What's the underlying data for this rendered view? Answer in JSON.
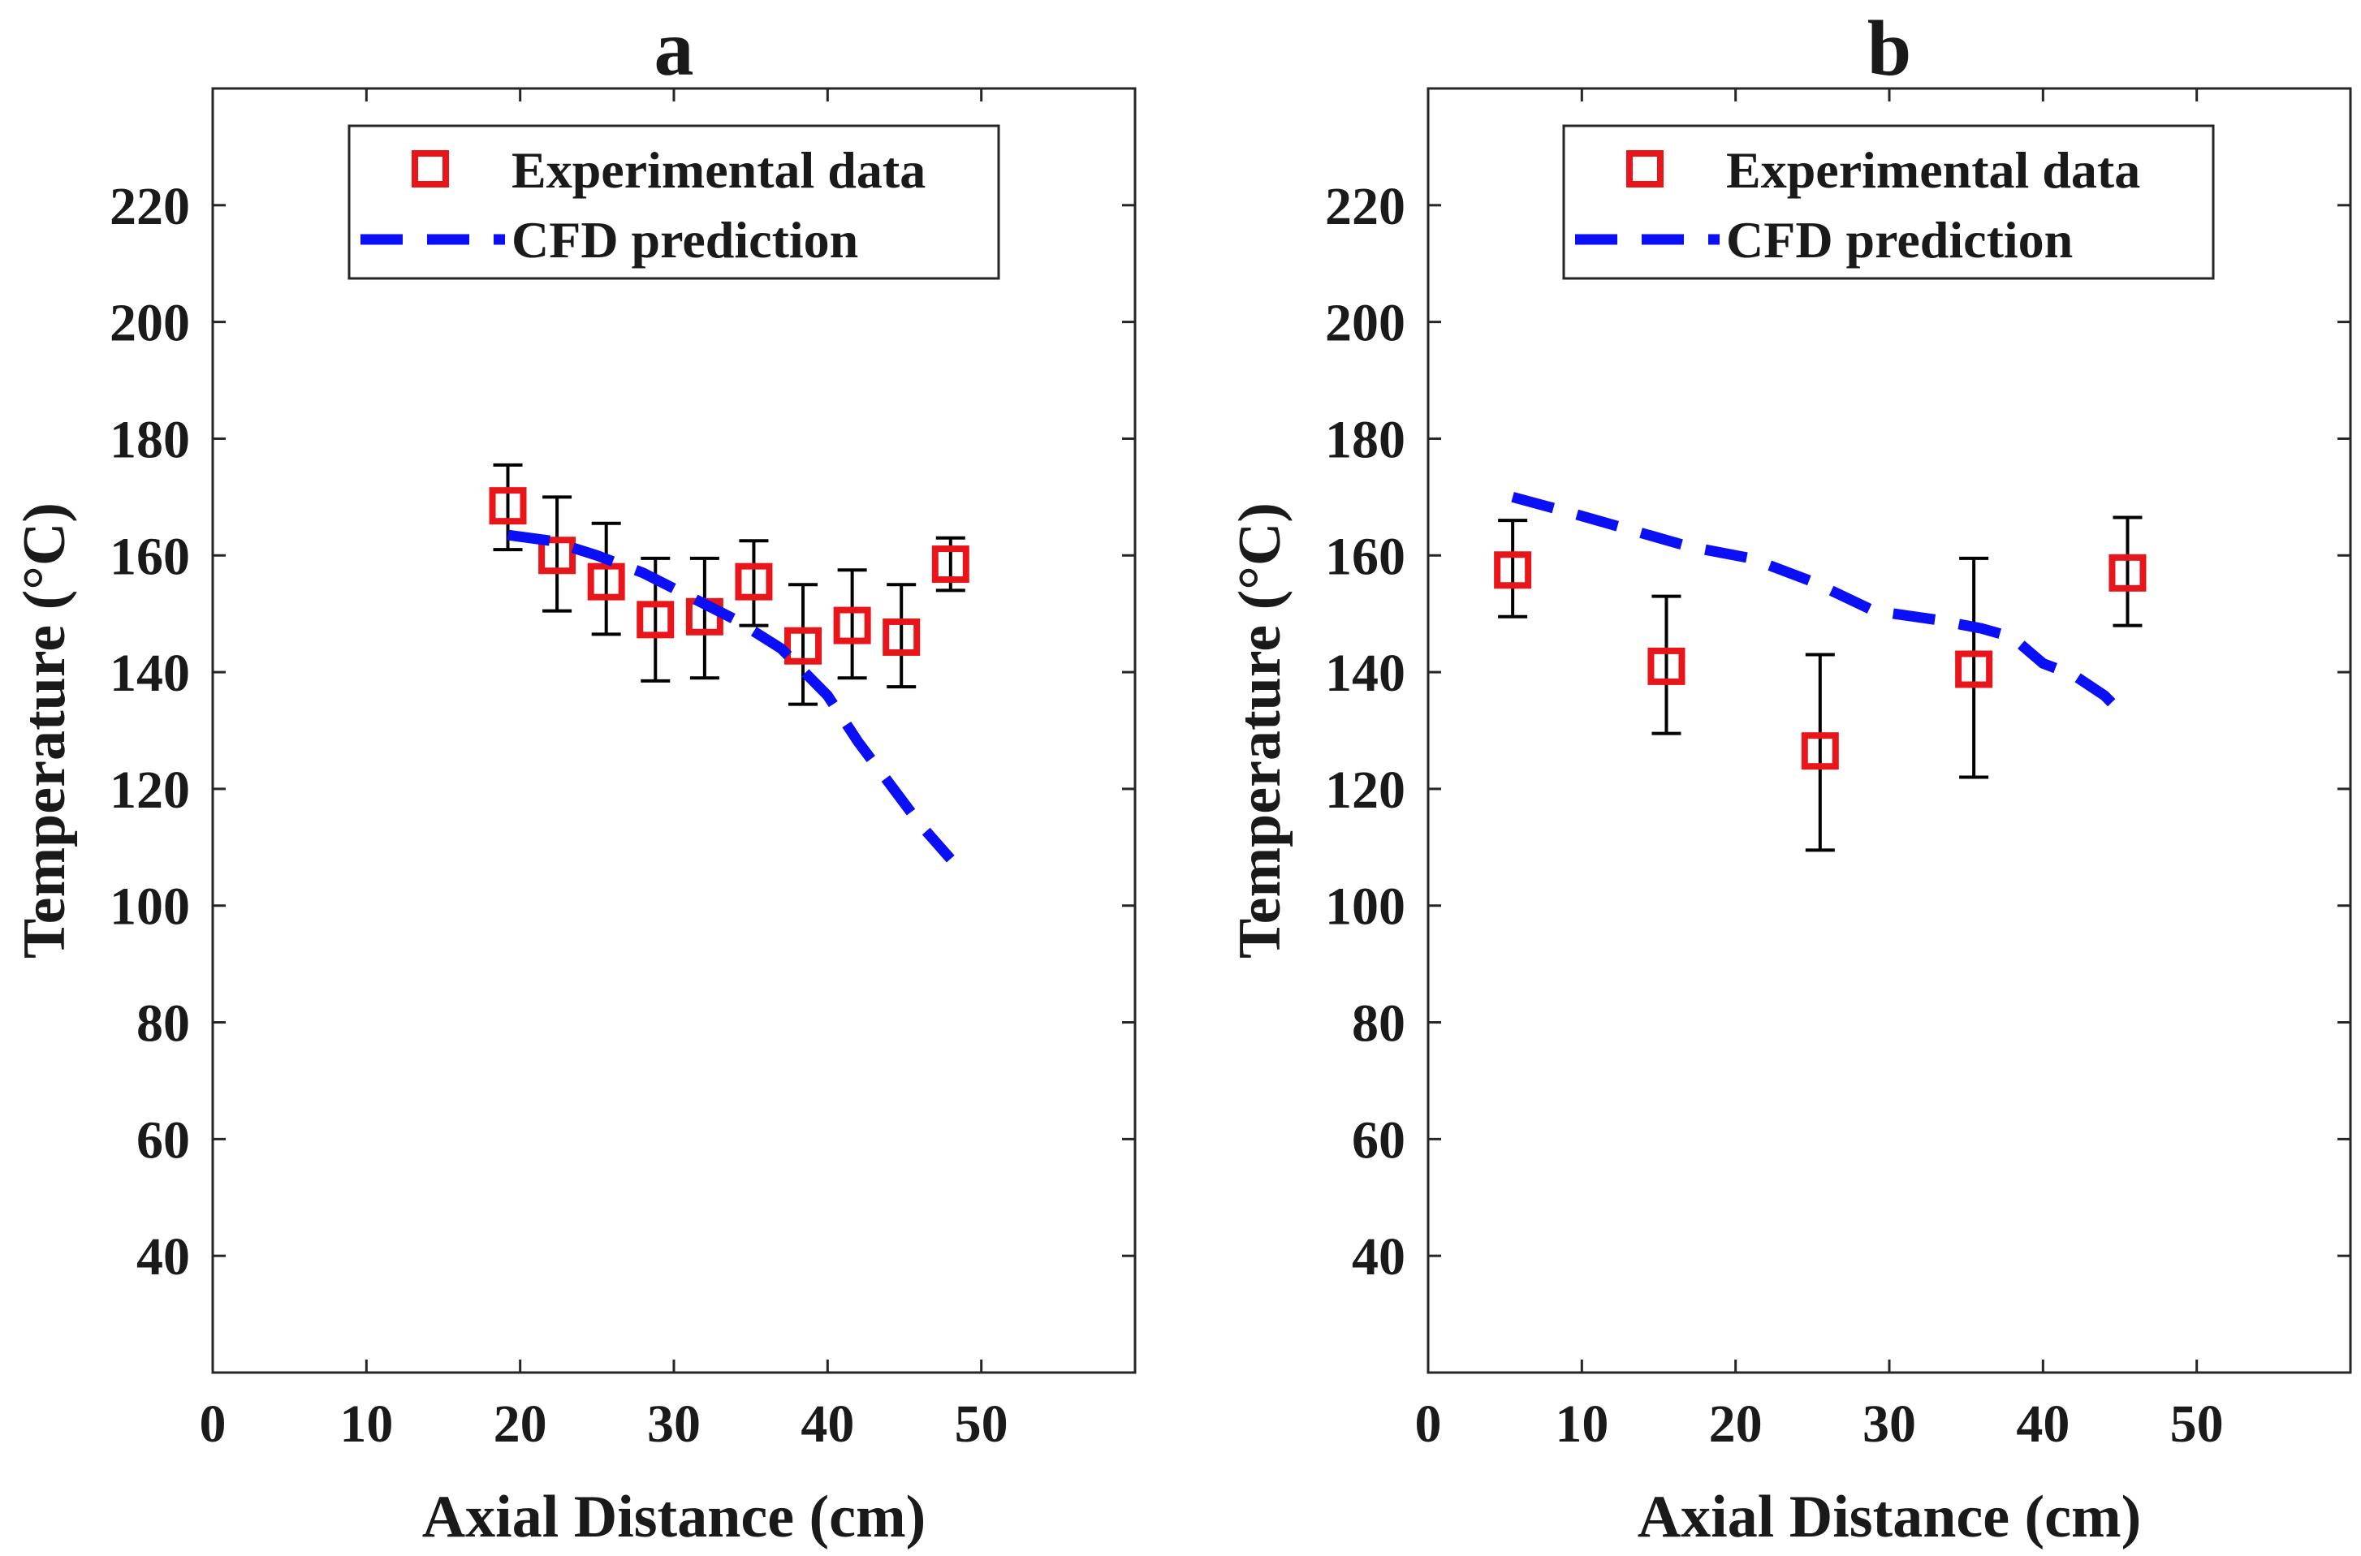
{
  "chart_data": [
    {
      "type": "line",
      "title": "a",
      "xlabel": "Axial Distance (cm)",
      "ylabel": "Temperature (°C)",
      "xlim": [
        0,
        60
      ],
      "ylim": [
        20,
        240
      ],
      "xticks": [
        0,
        10,
        20,
        30,
        40,
        50
      ],
      "yticks": [
        40,
        60,
        80,
        100,
        120,
        140,
        160,
        180,
        200,
        220
      ],
      "grid": false,
      "legend_position": "top-center",
      "series": [
        {
          "name": "Experimental data",
          "kind": "errorbar-markers",
          "marker": "square",
          "color": "#e8161b",
          "error_color": "#000000",
          "x": [
            19.2,
            22.4,
            25.6,
            28.8,
            32.0,
            35.2,
            38.4,
            41.6,
            44.8,
            48.0
          ],
          "y": [
            168.5,
            160.0,
            155.5,
            149.0,
            149.5,
            155.5,
            144.5,
            148.0,
            146.0,
            158.5
          ],
          "err_low": [
            161,
            150.5,
            146.5,
            138.5,
            139,
            148,
            134.5,
            139,
            137.5,
            154
          ],
          "err_high": [
            175.5,
            170,
            165.5,
            159.5,
            159.5,
            162.5,
            155,
            157.5,
            155,
            163
          ]
        },
        {
          "name": "CFD prediction",
          "kind": "line",
          "line_style": "dashed",
          "color": "#0a0ff5",
          "x": [
            19.2,
            22,
            25,
            28,
            31,
            34,
            37,
            40,
            42,
            44,
            46,
            48
          ],
          "y": [
            163.5,
            162.5,
            160,
            157,
            153,
            149,
            144,
            136,
            128,
            121,
            114,
            108
          ]
        }
      ]
    },
    {
      "type": "line",
      "title": "b",
      "xlabel": "Axial Distance (cm)",
      "ylabel": "Temperature (°C)",
      "xlim": [
        0,
        60
      ],
      "ylim": [
        20,
        240
      ],
      "xticks": [
        0,
        10,
        20,
        30,
        40,
        50
      ],
      "yticks": [
        40,
        60,
        80,
        100,
        120,
        140,
        160,
        180,
        200,
        220
      ],
      "grid": false,
      "legend_position": "top-center",
      "series": [
        {
          "name": "Experimental data",
          "kind": "errorbar-markers",
          "marker": "square",
          "color": "#e8161b",
          "error_color": "#000000",
          "x": [
            5.5,
            15.5,
            25.5,
            35.5,
            45.5
          ],
          "y": [
            157.5,
            141.0,
            126.5,
            140.5,
            157.0
          ],
          "err_low": [
            149.5,
            129.5,
            109.5,
            122,
            148
          ],
          "err_high": [
            166,
            153,
            143,
            159.5,
            166.5
          ]
        },
        {
          "name": "CFD prediction",
          "kind": "line",
          "line_style": "dashed",
          "color": "#0a0ff5",
          "x": [
            5.5,
            9,
            13,
            17,
            21,
            25,
            29,
            33,
            36,
            38,
            40,
            42,
            44,
            45.5
          ],
          "y": [
            170,
            167.5,
            164.5,
            161.5,
            159.5,
            155.5,
            150.5,
            149,
            147.5,
            146,
            141.5,
            139.5,
            136,
            132
          ]
        }
      ]
    }
  ]
}
